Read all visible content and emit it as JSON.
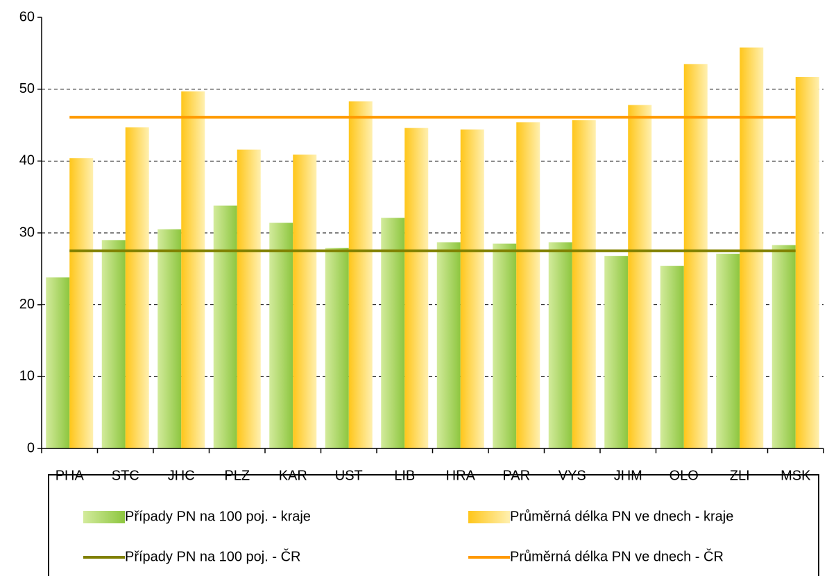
{
  "chart_data": {
    "type": "bar",
    "categories": [
      "PHA",
      "STC",
      "JHC",
      "PLZ",
      "KAR",
      "UST",
      "LIB",
      "HRA",
      "PAR",
      "VYS",
      "JHM",
      "OLO",
      "ZLI",
      "MSK"
    ],
    "series": [
      {
        "name": "Případy PN na 100 poj. - kraje",
        "type": "bar",
        "color": "#8dc63f",
        "values": [
          23.8,
          29.0,
          30.5,
          33.8,
          31.4,
          27.9,
          32.1,
          28.7,
          28.5,
          28.7,
          26.8,
          25.4,
          27.1,
          28.3
        ]
      },
      {
        "name": "Průměrná délka PN ve dnech - kraje",
        "type": "bar",
        "color": "#ffc61a",
        "values": [
          40.4,
          44.7,
          49.7,
          41.6,
          40.9,
          48.3,
          44.6,
          44.4,
          45.4,
          45.7,
          47.8,
          53.5,
          55.8,
          51.7
        ]
      },
      {
        "name": "Případy PN na 100 poj. - ČR",
        "type": "line",
        "color": "#808000",
        "values": [
          27.5,
          27.5,
          27.5,
          27.5,
          27.5,
          27.5,
          27.5,
          27.5,
          27.5,
          27.5,
          27.5,
          27.5,
          27.5,
          27.5
        ]
      },
      {
        "name": "Průměrná délka PN ve dnech - ČR",
        "type": "line",
        "color": "#ff9900",
        "values": [
          46.1,
          46.1,
          46.1,
          46.1,
          46.1,
          46.1,
          46.1,
          46.1,
          46.1,
          46.1,
          46.1,
          46.1,
          46.1,
          46.1
        ]
      }
    ],
    "ylim": [
      0,
      60
    ],
    "yticks": [
      0,
      10,
      20,
      30,
      40,
      50,
      60
    ],
    "grid": true,
    "legend": "bottom"
  }
}
